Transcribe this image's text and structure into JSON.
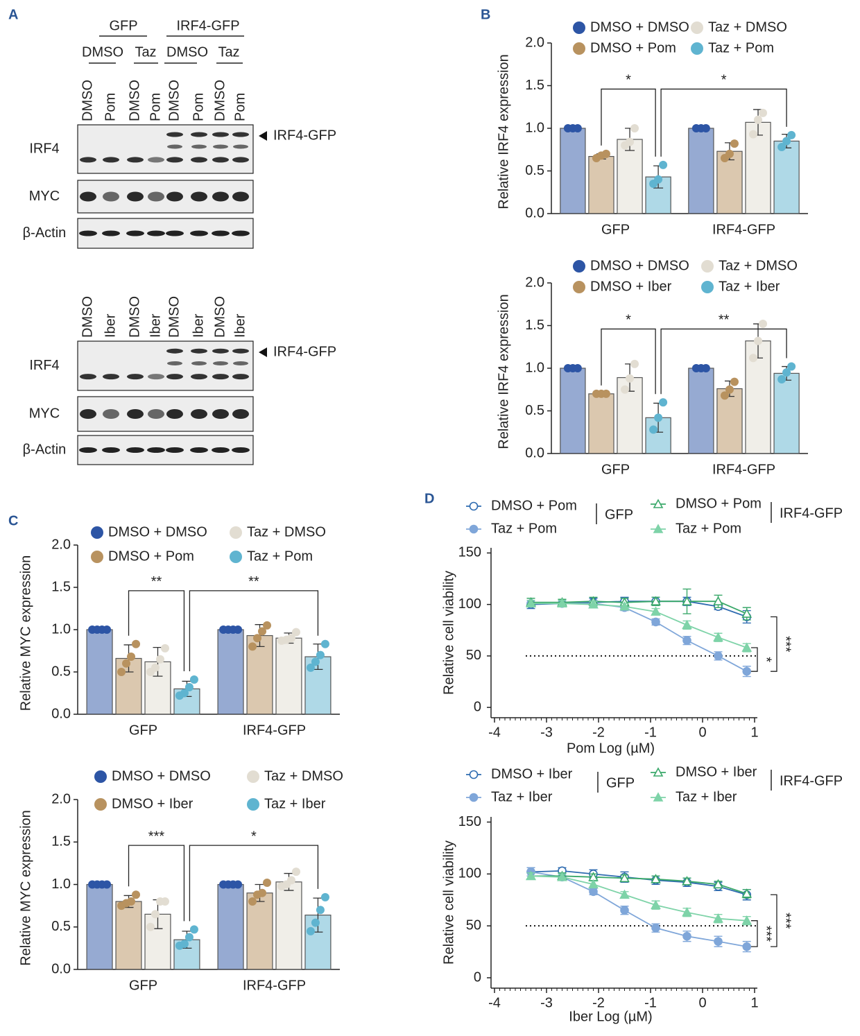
{
  "blot_panel": {
    "panel": "A",
    "blots": [
      {
        "header_groups": [
          "GFP",
          "IRF4-GFP"
        ],
        "subgroups": [
          "DMSO",
          "Taz",
          "DMSO",
          "Taz"
        ],
        "lanes": [
          "DMSO",
          "Pom",
          "DMSO",
          "Pom",
          "DMSO",
          "Pom",
          "DMSO",
          "Pom"
        ],
        "rows": [
          "IRF4",
          "MYC",
          "β-Actin"
        ],
        "marker": "IRF4-GFP"
      },
      {
        "lanes": [
          "DMSO",
          "Iber",
          "DMSO",
          "Iber",
          "DMSO",
          "Iber",
          "DMSO",
          "Iber"
        ],
        "rows": [
          "IRF4",
          "MYC",
          "β-Actin"
        ],
        "marker": "IRF4-GFP"
      }
    ]
  },
  "chart_data": [
    {
      "type": "bar",
      "panel": "B",
      "y_label": "Relative IRF4 expression",
      "categories": [
        "GFP",
        "IRF4-GFP"
      ],
      "ylim": [
        0,
        2
      ],
      "yticks": [
        {
          "value": 0,
          "label": "0.0"
        },
        0.5,
        {
          "value": 1,
          "label": "1.0"
        },
        1.5,
        {
          "value": 2,
          "label": "2.0"
        }
      ],
      "series": [
        {
          "name": "DMSO + DMSO",
          "color": "#2d55a5",
          "values": [
            1.0,
            1.0
          ],
          "errors": [
            0,
            0
          ],
          "points": [
            [
              1,
              1,
              1
            ],
            [
              1,
              1,
              1
            ]
          ]
        },
        {
          "name": "DMSO + Pom",
          "color": "#b8925f",
          "values": [
            0.67,
            0.73
          ],
          "errors": [
            0.03,
            0.1
          ],
          "points": [
            [
              0.65,
              0.68,
              0.7
            ],
            [
              0.65,
              0.7,
              0.82
            ]
          ]
        },
        {
          "name": "Taz + DMSO",
          "color": "#e2ddd2",
          "values": [
            0.87,
            1.07
          ],
          "errors": [
            0.13,
            0.15
          ],
          "points": [
            [
              0.8,
              0.84,
              1.0
            ],
            [
              0.93,
              1.1,
              1.18
            ]
          ]
        },
        {
          "name": "Taz + Pom",
          "color": "#5fb4d0",
          "values": [
            0.43,
            0.85
          ],
          "errors": [
            0.13,
            0.08
          ],
          "points": [
            [
              0.35,
              0.4,
              0.57
            ],
            [
              0.78,
              0.85,
              0.92
            ]
          ]
        }
      ],
      "significance": [
        "*",
        "*"
      ]
    },
    {
      "type": "bar",
      "y_label": "Relative IRF4 expression",
      "categories": [
        "GFP",
        "IRF4-GFP"
      ],
      "ylim": [
        0,
        2
      ],
      "yticks": [
        {
          "value": 0,
          "label": "0.0"
        },
        0.5,
        {
          "value": 1,
          "label": "1.0"
        },
        1.5,
        {
          "value": 2,
          "label": "2.0"
        }
      ],
      "series": [
        {
          "name": "DMSO + DMSO",
          "color": "#2d55a5",
          "values": [
            1.0,
            1.0
          ],
          "errors": [
            0,
            0
          ],
          "points": [
            [
              1,
              1,
              1
            ],
            [
              1,
              1,
              1
            ]
          ]
        },
        {
          "name": "DMSO + Iber",
          "color": "#b8925f",
          "values": [
            0.7,
            0.76
          ],
          "errors": [
            0.01,
            0.09
          ],
          "points": [
            [
              0.7,
              0.7,
              0.7
            ],
            [
              0.68,
              0.75,
              0.84
            ]
          ]
        },
        {
          "name": "Taz + DMSO",
          "color": "#e2ddd2",
          "values": [
            0.89,
            1.32
          ],
          "errors": [
            0.16,
            0.2
          ],
          "points": [
            [
              0.75,
              0.88,
              1.05
            ],
            [
              1.12,
              1.32,
              1.52
            ]
          ]
        },
        {
          "name": "Taz + Iber",
          "color": "#5fb4d0",
          "values": [
            0.42,
            0.94
          ],
          "errors": [
            0.17,
            0.08
          ],
          "points": [
            [
              0.28,
              0.42,
              0.6
            ],
            [
              0.87,
              0.95,
              1.02
            ]
          ]
        }
      ],
      "significance": [
        "*",
        "**"
      ]
    },
    {
      "type": "bar",
      "panel": "C",
      "y_label": "Relative MYC expression",
      "categories": [
        "GFP",
        "IRF4-GFP"
      ],
      "ylim": [
        0,
        2
      ],
      "yticks": [
        {
          "value": 0,
          "label": "0.0"
        },
        0.5,
        {
          "value": 1,
          "label": "1.0"
        },
        1.5,
        {
          "value": 2,
          "label": "2.0"
        }
      ],
      "series": [
        {
          "name": "DMSO + DMSO",
          "color": "#2d55a5",
          "values": [
            1.0,
            1.0
          ],
          "errors": [
            0,
            0
          ],
          "points": [
            [
              1,
              1,
              1,
              1
            ],
            [
              1,
              1,
              1,
              1
            ]
          ]
        },
        {
          "name": "DMSO + Pom",
          "color": "#b8925f",
          "values": [
            0.66,
            0.93
          ],
          "errors": [
            0.16,
            0.13
          ],
          "points": [
            [
              0.5,
              0.6,
              0.68,
              0.83
            ],
            [
              0.8,
              0.9,
              0.98,
              1.05
            ]
          ]
        },
        {
          "name": "Taz + DMSO",
          "color": "#e2ddd2",
          "values": [
            0.62,
            0.9
          ],
          "errors": [
            0.17,
            0.06
          ],
          "points": [
            [
              0.5,
              0.55,
              0.65,
              0.78
            ],
            [
              0.87,
              0.88,
              0.9,
              0.97
            ]
          ]
        },
        {
          "name": "Taz + Pom",
          "color": "#5fb4d0",
          "values": [
            0.3,
            0.68
          ],
          "errors": [
            0.09,
            0.15
          ],
          "points": [
            [
              0.22,
              0.25,
              0.32,
              0.41
            ],
            [
              0.55,
              0.62,
              0.7,
              0.83
            ]
          ]
        }
      ],
      "significance": [
        "**",
        "**"
      ]
    },
    {
      "type": "bar",
      "y_label": "Relative MYC expression",
      "categories": [
        "GFP",
        "IRF4-GFP"
      ],
      "ylim": [
        0,
        2
      ],
      "yticks": [
        {
          "value": 0,
          "label": "0.0"
        },
        0.5,
        {
          "value": 1,
          "label": "1.0"
        },
        1.5,
        {
          "value": 2,
          "label": "2.0"
        }
      ],
      "series": [
        {
          "name": "DMSO + DMSO",
          "color": "#2d55a5",
          "values": [
            1.0,
            1.0
          ],
          "errors": [
            0,
            0
          ],
          "points": [
            [
              1,
              1,
              1,
              1
            ],
            [
              1,
              1,
              1,
              1
            ]
          ]
        },
        {
          "name": "DMSO + Iber",
          "color": "#b8925f",
          "values": [
            0.8,
            0.9
          ],
          "errors": [
            0.07,
            0.1
          ],
          "points": [
            [
              0.75,
              0.78,
              0.8,
              0.88
            ],
            [
              0.8,
              0.88,
              0.9,
              1.02
            ]
          ]
        },
        {
          "name": "Taz + DMSO",
          "color": "#e2ddd2",
          "values": [
            0.65,
            1.03
          ],
          "errors": [
            0.17,
            0.1
          ],
          "points": [
            [
              0.5,
              0.65,
              0.8,
              0.8
            ],
            [
              0.98,
              1.0,
              1.05,
              1.15
            ]
          ]
        },
        {
          "name": "Taz + Iber",
          "color": "#5fb4d0",
          "values": [
            0.35,
            0.64
          ],
          "errors": [
            0.1,
            0.2
          ],
          "points": [
            [
              0.28,
              0.3,
              0.38,
              0.47
            ],
            [
              0.45,
              0.55,
              0.7,
              0.85
            ]
          ]
        }
      ],
      "significance": [
        "***",
        "*"
      ]
    },
    {
      "type": "line",
      "panel": "D",
      "x_label": "Pom Log (µM)",
      "y_label": "Relative cell viability",
      "x": [
        -3.3,
        -2.7,
        -2.1,
        -1.5,
        -0.9,
        -0.3,
        0.3,
        0.85
      ],
      "xlim": [
        -4,
        1
      ],
      "xticks": [
        -4,
        -3,
        -2,
        -1,
        0,
        1
      ],
      "ylim": [
        -10,
        155
      ],
      "yticks": [
        0,
        50,
        100,
        150
      ],
      "reference_line": 50,
      "groups": [
        "GFP",
        "IRF4-GFP"
      ],
      "series": [
        {
          "name": "DMSO + Pom",
          "color": "#2e6bb0",
          "marker": "circle",
          "filled": false,
          "values": [
            100,
            101,
            102,
            103,
            103,
            103,
            98,
            88
          ],
          "errors": [
            4,
            3,
            4,
            4,
            4,
            4,
            3,
            6
          ]
        },
        {
          "name": "Taz + Pom",
          "color": "#7fa6d9",
          "marker": "circle",
          "filled": true,
          "values": [
            101,
            101,
            101,
            97,
            83,
            65,
            50,
            35
          ],
          "errors": [
            3,
            3,
            3,
            3,
            3,
            4,
            4,
            5
          ]
        },
        {
          "name": "DMSO + Pom",
          "color": "#3aa86a",
          "marker": "triangle",
          "filled": false,
          "values": [
            102,
            102,
            103,
            102,
            103,
            103,
            103,
            91
          ],
          "errors": [
            4,
            3,
            4,
            4,
            4,
            12,
            6,
            6
          ]
        },
        {
          "name": "Taz + Pom",
          "color": "#7ed3a8",
          "marker": "triangle",
          "filled": true,
          "values": [
            101,
            101,
            100,
            98,
            93,
            80,
            68,
            58
          ],
          "errors": [
            3,
            3,
            3,
            3,
            3,
            4,
            4,
            4
          ]
        }
      ],
      "significance": [
        "*",
        "***"
      ]
    },
    {
      "type": "line",
      "x_label": "Iber Log (µM)",
      "y_label": "Relative cell viability",
      "x": [
        -3.3,
        -2.7,
        -2.1,
        -1.5,
        -0.9,
        -0.3,
        0.3,
        0.85
      ],
      "xlim": [
        -4,
        1
      ],
      "xticks": [
        -4,
        -3,
        -2,
        -1,
        0,
        1
      ],
      "ylim": [
        -10,
        155
      ],
      "yticks": [
        0,
        50,
        100,
        150
      ],
      "reference_line": 50,
      "groups": [
        "GFP",
        "IRF4-GFP"
      ],
      "series": [
        {
          "name": "DMSO + Iber",
          "color": "#2e6bb0",
          "marker": "circle",
          "filled": false,
          "values": [
            102,
            103,
            100,
            97,
            94,
            92,
            88,
            80
          ],
          "errors": [
            4,
            3,
            4,
            5,
            4,
            4,
            4,
            5
          ]
        },
        {
          "name": "Taz + Iber",
          "color": "#7fa6d9",
          "marker": "circle",
          "filled": true,
          "values": [
            102,
            97,
            83,
            65,
            48,
            40,
            35,
            30
          ],
          "errors": [
            4,
            3,
            3,
            4,
            4,
            5,
            5,
            5
          ]
        },
        {
          "name": "DMSO + Iber",
          "color": "#3aa86a",
          "marker": "triangle",
          "filled": false,
          "values": [
            98,
            98,
            97,
            96,
            95,
            93,
            90,
            81
          ],
          "errors": [
            3,
            3,
            3,
            3,
            3,
            3,
            3,
            4
          ]
        },
        {
          "name": "Taz + Iber",
          "color": "#7ed3a8",
          "marker": "triangle",
          "filled": true,
          "values": [
            98,
            97,
            90,
            80,
            70,
            63,
            57,
            55
          ],
          "errors": [
            3,
            3,
            3,
            3,
            4,
            4,
            4,
            4
          ]
        }
      ],
      "significance": [
        "***",
        "***"
      ]
    }
  ]
}
